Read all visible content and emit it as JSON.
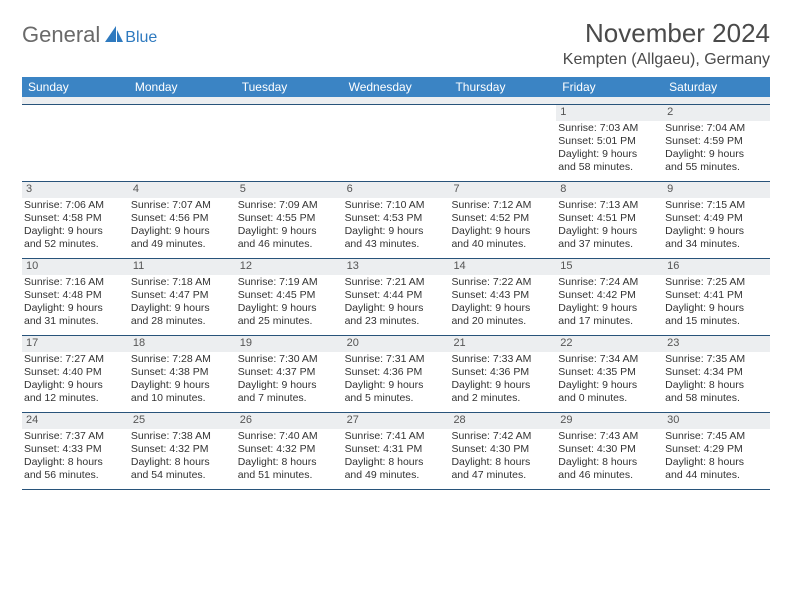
{
  "logo": {
    "general": "General",
    "blue": "Blue"
  },
  "header": {
    "month_title": "November 2024",
    "location": "Kempten (Allgaeu), Germany"
  },
  "colors": {
    "header_bg": "#3b84c4",
    "header_text": "#ffffff",
    "daynum_bg": "#eceef0",
    "border": "#28537a",
    "body_text": "#333333",
    "title_text": "#4a4a4a",
    "logo_gray": "#6a6a6a",
    "logo_blue": "#2f7abf"
  },
  "day_names": [
    "Sunday",
    "Monday",
    "Tuesday",
    "Wednesday",
    "Thursday",
    "Friday",
    "Saturday"
  ],
  "weeks": [
    [
      {
        "empty": true
      },
      {
        "empty": true
      },
      {
        "empty": true
      },
      {
        "empty": true
      },
      {
        "empty": true
      },
      {
        "num": "1",
        "sunrise": "Sunrise: 7:03 AM",
        "sunset": "Sunset: 5:01 PM",
        "daylight1": "Daylight: 9 hours",
        "daylight2": "and 58 minutes."
      },
      {
        "num": "2",
        "sunrise": "Sunrise: 7:04 AM",
        "sunset": "Sunset: 4:59 PM",
        "daylight1": "Daylight: 9 hours",
        "daylight2": "and 55 minutes."
      }
    ],
    [
      {
        "num": "3",
        "sunrise": "Sunrise: 7:06 AM",
        "sunset": "Sunset: 4:58 PM",
        "daylight1": "Daylight: 9 hours",
        "daylight2": "and 52 minutes."
      },
      {
        "num": "4",
        "sunrise": "Sunrise: 7:07 AM",
        "sunset": "Sunset: 4:56 PM",
        "daylight1": "Daylight: 9 hours",
        "daylight2": "and 49 minutes."
      },
      {
        "num": "5",
        "sunrise": "Sunrise: 7:09 AM",
        "sunset": "Sunset: 4:55 PM",
        "daylight1": "Daylight: 9 hours",
        "daylight2": "and 46 minutes."
      },
      {
        "num": "6",
        "sunrise": "Sunrise: 7:10 AM",
        "sunset": "Sunset: 4:53 PM",
        "daylight1": "Daylight: 9 hours",
        "daylight2": "and 43 minutes."
      },
      {
        "num": "7",
        "sunrise": "Sunrise: 7:12 AM",
        "sunset": "Sunset: 4:52 PM",
        "daylight1": "Daylight: 9 hours",
        "daylight2": "and 40 minutes."
      },
      {
        "num": "8",
        "sunrise": "Sunrise: 7:13 AM",
        "sunset": "Sunset: 4:51 PM",
        "daylight1": "Daylight: 9 hours",
        "daylight2": "and 37 minutes."
      },
      {
        "num": "9",
        "sunrise": "Sunrise: 7:15 AM",
        "sunset": "Sunset: 4:49 PM",
        "daylight1": "Daylight: 9 hours",
        "daylight2": "and 34 minutes."
      }
    ],
    [
      {
        "num": "10",
        "sunrise": "Sunrise: 7:16 AM",
        "sunset": "Sunset: 4:48 PM",
        "daylight1": "Daylight: 9 hours",
        "daylight2": "and 31 minutes."
      },
      {
        "num": "11",
        "sunrise": "Sunrise: 7:18 AM",
        "sunset": "Sunset: 4:47 PM",
        "daylight1": "Daylight: 9 hours",
        "daylight2": "and 28 minutes."
      },
      {
        "num": "12",
        "sunrise": "Sunrise: 7:19 AM",
        "sunset": "Sunset: 4:45 PM",
        "daylight1": "Daylight: 9 hours",
        "daylight2": "and 25 minutes."
      },
      {
        "num": "13",
        "sunrise": "Sunrise: 7:21 AM",
        "sunset": "Sunset: 4:44 PM",
        "daylight1": "Daylight: 9 hours",
        "daylight2": "and 23 minutes."
      },
      {
        "num": "14",
        "sunrise": "Sunrise: 7:22 AM",
        "sunset": "Sunset: 4:43 PM",
        "daylight1": "Daylight: 9 hours",
        "daylight2": "and 20 minutes."
      },
      {
        "num": "15",
        "sunrise": "Sunrise: 7:24 AM",
        "sunset": "Sunset: 4:42 PM",
        "daylight1": "Daylight: 9 hours",
        "daylight2": "and 17 minutes."
      },
      {
        "num": "16",
        "sunrise": "Sunrise: 7:25 AM",
        "sunset": "Sunset: 4:41 PM",
        "daylight1": "Daylight: 9 hours",
        "daylight2": "and 15 minutes."
      }
    ],
    [
      {
        "num": "17",
        "sunrise": "Sunrise: 7:27 AM",
        "sunset": "Sunset: 4:40 PM",
        "daylight1": "Daylight: 9 hours",
        "daylight2": "and 12 minutes."
      },
      {
        "num": "18",
        "sunrise": "Sunrise: 7:28 AM",
        "sunset": "Sunset: 4:38 PM",
        "daylight1": "Daylight: 9 hours",
        "daylight2": "and 10 minutes."
      },
      {
        "num": "19",
        "sunrise": "Sunrise: 7:30 AM",
        "sunset": "Sunset: 4:37 PM",
        "daylight1": "Daylight: 9 hours",
        "daylight2": "and 7 minutes."
      },
      {
        "num": "20",
        "sunrise": "Sunrise: 7:31 AM",
        "sunset": "Sunset: 4:36 PM",
        "daylight1": "Daylight: 9 hours",
        "daylight2": "and 5 minutes."
      },
      {
        "num": "21",
        "sunrise": "Sunrise: 7:33 AM",
        "sunset": "Sunset: 4:36 PM",
        "daylight1": "Daylight: 9 hours",
        "daylight2": "and 2 minutes."
      },
      {
        "num": "22",
        "sunrise": "Sunrise: 7:34 AM",
        "sunset": "Sunset: 4:35 PM",
        "daylight1": "Daylight: 9 hours",
        "daylight2": "and 0 minutes."
      },
      {
        "num": "23",
        "sunrise": "Sunrise: 7:35 AM",
        "sunset": "Sunset: 4:34 PM",
        "daylight1": "Daylight: 8 hours",
        "daylight2": "and 58 minutes."
      }
    ],
    [
      {
        "num": "24",
        "sunrise": "Sunrise: 7:37 AM",
        "sunset": "Sunset: 4:33 PM",
        "daylight1": "Daylight: 8 hours",
        "daylight2": "and 56 minutes."
      },
      {
        "num": "25",
        "sunrise": "Sunrise: 7:38 AM",
        "sunset": "Sunset: 4:32 PM",
        "daylight1": "Daylight: 8 hours",
        "daylight2": "and 54 minutes."
      },
      {
        "num": "26",
        "sunrise": "Sunrise: 7:40 AM",
        "sunset": "Sunset: 4:32 PM",
        "daylight1": "Daylight: 8 hours",
        "daylight2": "and 51 minutes."
      },
      {
        "num": "27",
        "sunrise": "Sunrise: 7:41 AM",
        "sunset": "Sunset: 4:31 PM",
        "daylight1": "Daylight: 8 hours",
        "daylight2": "and 49 minutes."
      },
      {
        "num": "28",
        "sunrise": "Sunrise: 7:42 AM",
        "sunset": "Sunset: 4:30 PM",
        "daylight1": "Daylight: 8 hours",
        "daylight2": "and 47 minutes."
      },
      {
        "num": "29",
        "sunrise": "Sunrise: 7:43 AM",
        "sunset": "Sunset: 4:30 PM",
        "daylight1": "Daylight: 8 hours",
        "daylight2": "and 46 minutes."
      },
      {
        "num": "30",
        "sunrise": "Sunrise: 7:45 AM",
        "sunset": "Sunset: 4:29 PM",
        "daylight1": "Daylight: 8 hours",
        "daylight2": "and 44 minutes."
      }
    ]
  ]
}
